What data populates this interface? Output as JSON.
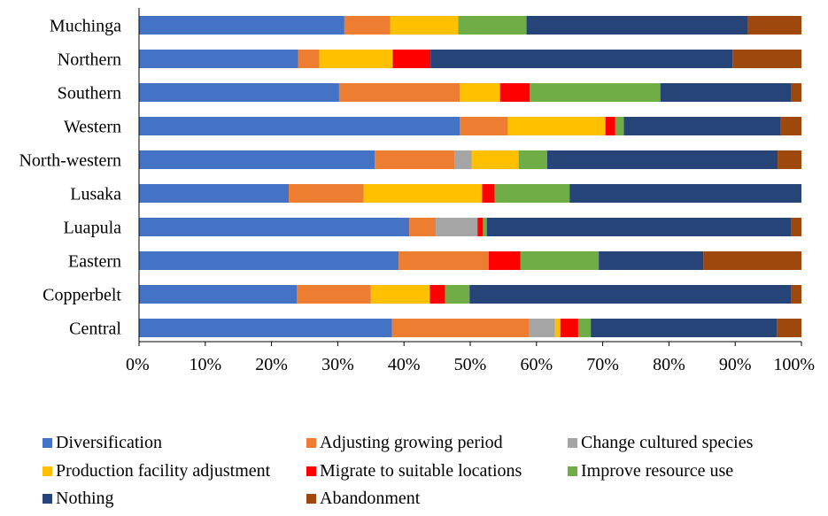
{
  "chart_data": {
    "type": "bar",
    "orientation": "horizontal",
    "stacked": true,
    "normalized": true,
    "title": "",
    "xlabel": "",
    "ylabel": "",
    "xlim": [
      0,
      100
    ],
    "x_ticks": [
      "0%",
      "10%",
      "20%",
      "30%",
      "40%",
      "50%",
      "60%",
      "70%",
      "80%",
      "90%",
      "100%"
    ],
    "grid": false,
    "legend_position": "bottom",
    "categories": [
      "Muchinga",
      "Northern",
      "Southern",
      "Western",
      "North-western",
      "Lusaka",
      "Luapula",
      "Eastern",
      "Copperbelt",
      "Central"
    ],
    "series": [
      {
        "name": "Diversification",
        "color": "#4472C4",
        "values": [
          31.0,
          24.0,
          30.2,
          48.4,
          35.6,
          22.6,
          40.8,
          39.2,
          23.8,
          38.2
        ]
      },
      {
        "name": "Adjusting growing period",
        "color": "#ED7D31",
        "values": [
          6.9,
          3.2,
          18.2,
          7.3,
          12.0,
          11.3,
          4.0,
          13.6,
          11.2,
          20.7
        ]
      },
      {
        "name": "Change cultured species",
        "color": "#A5A5A5",
        "values": [
          0,
          0,
          0,
          0,
          2.6,
          0,
          6.3,
          0,
          0,
          3.9
        ]
      },
      {
        "name": "Production facility adjustment",
        "color": "#FFC000",
        "values": [
          10.3,
          11.1,
          6.1,
          14.7,
          7.1,
          17.9,
          0,
          0,
          8.9,
          0.8
        ]
      },
      {
        "name": "Migrate to suitable locations",
        "color": "#FF0000",
        "values": [
          0,
          5.7,
          4.5,
          1.5,
          0,
          1.9,
          0.8,
          4.8,
          2.3,
          2.7
        ]
      },
      {
        "name": "Improve resource use",
        "color": "#70AD47",
        "values": [
          10.3,
          0,
          19.7,
          1.3,
          4.3,
          11.3,
          0.6,
          11.8,
          3.7,
          1.9
        ]
      },
      {
        "name": "Nothing",
        "color": "#264478",
        "values": [
          33.4,
          45.6,
          19.8,
          23.7,
          34.8,
          35.0,
          45.9,
          15.8,
          48.5,
          28.1
        ]
      },
      {
        "name": "Abandonment",
        "color": "#9E480E",
        "values": [
          8.1,
          10.4,
          1.5,
          3.1,
          3.6,
          0,
          1.6,
          14.8,
          1.6,
          3.7
        ]
      }
    ]
  }
}
